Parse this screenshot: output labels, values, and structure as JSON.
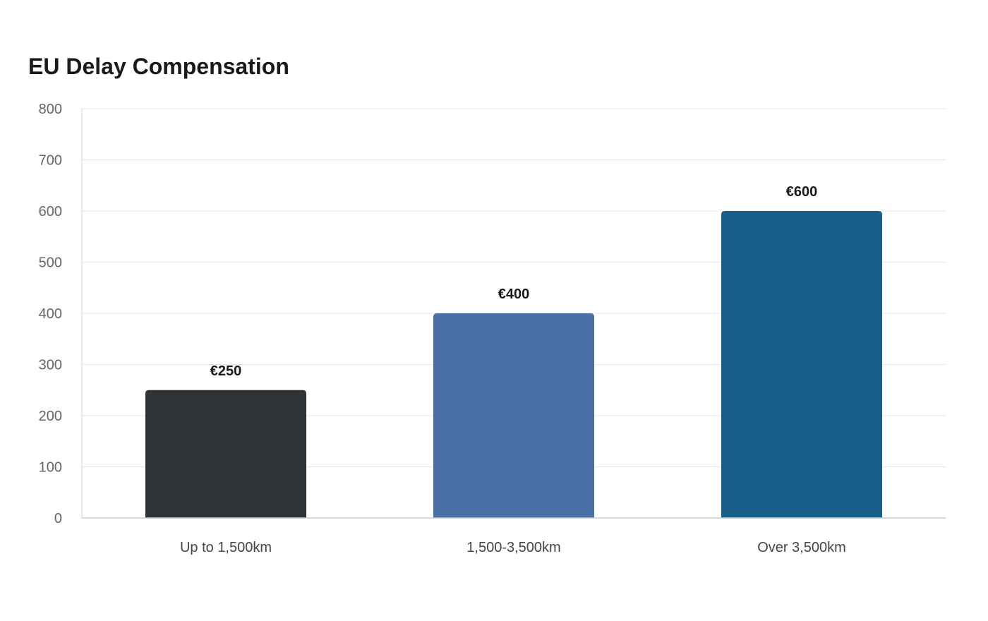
{
  "chart_data": {
    "type": "bar",
    "title": "EU Delay Compensation",
    "xlabel": "",
    "ylabel": "",
    "categories": [
      "Up to 1,500km",
      "1,500-3,500km",
      "Over 3,500km"
    ],
    "values": [
      250,
      400,
      600
    ],
    "data_labels": [
      "€250",
      "€400",
      "€600"
    ],
    "colors": [
      "#2e3436",
      "#4a6fa5",
      "#17608a"
    ],
    "ylim": [
      0,
      800
    ],
    "yticks": [
      0,
      100,
      200,
      300,
      400,
      500,
      600,
      700,
      800
    ],
    "grid": true,
    "legend": "none"
  }
}
